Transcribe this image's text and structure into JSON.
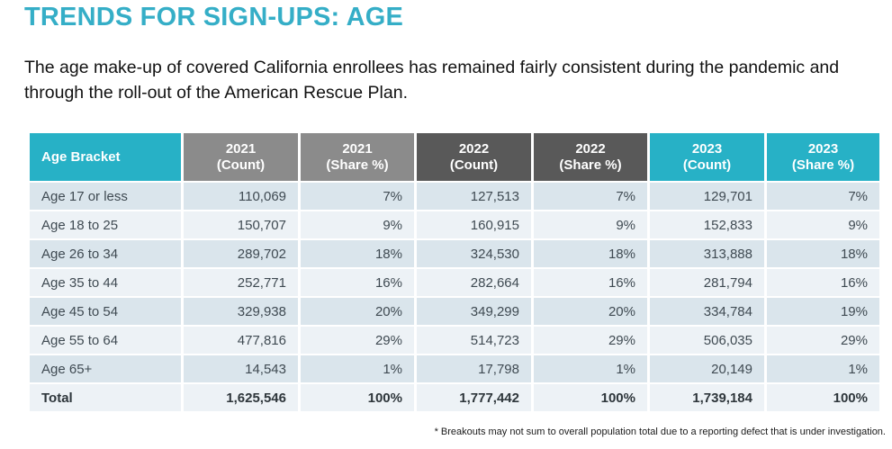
{
  "slide": {
    "title": "TRENDS FOR SIGN-UPS: AGE",
    "subtitle_lines": [
      "The age make-up of covered California enrollees has remained fairly consistent during the",
      "pandemic and through the roll-out of the American Rescue Plan."
    ],
    "footnote": "* Breakouts may not sum to overall population total due to a reporting defect that is under investigation."
  },
  "colors": {
    "title_teal": "#35aec7",
    "header_teal": "#27b1c6",
    "header_gray_2021": "#8b8b8b",
    "header_gray_2022": "#595959",
    "row_odd": "#dae5ec",
    "row_even": "#edf2f6",
    "cell_text": "#3f4a52",
    "total_text": "#2e363b"
  },
  "chart_data": {
    "type": "table",
    "title": "TRENDS FOR SIGN-UPS: AGE",
    "columns": [
      {
        "label": "Age Bracket",
        "lines": [
          "Age Bracket"
        ],
        "theme": "teal",
        "align": "left"
      },
      {
        "label": "2021 (Count)",
        "lines": [
          "2021",
          "(Count)"
        ],
        "theme": "gray-light",
        "align": "right"
      },
      {
        "label": "2021 (Share %)",
        "lines": [
          "2021",
          "(Share %)"
        ],
        "theme": "gray-light",
        "align": "right"
      },
      {
        "label": "2022 (Count)",
        "lines": [
          "2022",
          "(Count)"
        ],
        "theme": "gray-dark",
        "align": "right"
      },
      {
        "label": "2022 (Share %)",
        "lines": [
          "2022",
          "(Share %)"
        ],
        "theme": "gray-dark",
        "align": "right"
      },
      {
        "label": "2023 (Count)",
        "lines": [
          "2023",
          "(Count)"
        ],
        "theme": "teal",
        "align": "right"
      },
      {
        "label": "2023 (Share %)",
        "lines": [
          "2023",
          "(Share %)"
        ],
        "theme": "teal",
        "align": "right"
      }
    ],
    "rows": [
      [
        "Age 17 or less",
        "110,069",
        "7%",
        "127,513",
        "7%",
        "129,701",
        "7%"
      ],
      [
        "Age 18 to 25",
        "150,707",
        "9%",
        "160,915",
        "9%",
        "152,833",
        "9%"
      ],
      [
        "Age 26 to 34",
        "289,702",
        "18%",
        "324,530",
        "18%",
        "313,888",
        "18%"
      ],
      [
        "Age 35 to 44",
        "252,771",
        "16%",
        "282,664",
        "16%",
        "281,794",
        "16%"
      ],
      [
        "Age 45 to 54",
        "329,938",
        "20%",
        "349,299",
        "20%",
        "334,784",
        "19%"
      ],
      [
        "Age 55 to 64",
        "477,816",
        "29%",
        "514,723",
        "29%",
        "506,035",
        "29%"
      ],
      [
        "Age 65+",
        "14,543",
        "1%",
        "17,798",
        "1%",
        "20,149",
        "1%"
      ]
    ],
    "total_row": [
      "Total",
      "1,625,546",
      "100%",
      "1,777,442",
      "100%",
      "1,739,184",
      "100%"
    ]
  }
}
